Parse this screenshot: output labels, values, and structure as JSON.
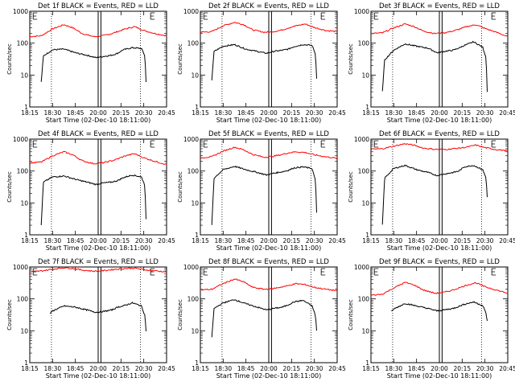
{
  "chart_data": {
    "type": "line",
    "x_ticks": [
      "18:15",
      "18:30",
      "18:45",
      "20:00",
      "20:15",
      "20:30",
      "20:45"
    ],
    "xlabel": "Start Time (02-Dec-10 18:11:00)",
    "ylabel": "Counts/sec",
    "y_ticks": [
      "1000",
      "100",
      "10",
      "1"
    ],
    "ylim": [
      1,
      1000
    ],
    "y_scale": "log",
    "grid": false,
    "series_colors": {
      "events": "#000000",
      "lld": "#ff0000"
    },
    "panels": [
      {
        "title": "Det 1f BLACK = Events, RED = LLD",
        "events": [
          [
            0.5,
            6
          ],
          [
            0.6,
            40
          ],
          [
            1.0,
            62
          ],
          [
            1.5,
            65
          ],
          [
            2.0,
            50
          ],
          [
            2.5,
            42
          ],
          [
            2.9,
            35
          ],
          [
            3.2,
            38
          ],
          [
            3.6,
            42
          ],
          [
            3.85,
            48
          ],
          [
            4.1,
            62
          ],
          [
            4.5,
            72
          ],
          [
            4.9,
            68
          ],
          [
            5.05,
            40
          ],
          [
            5.1,
            6
          ]
        ],
        "lld": [
          [
            0,
            160
          ],
          [
            0.5,
            170
          ],
          [
            1.0,
            280
          ],
          [
            1.5,
            380
          ],
          [
            1.9,
            300
          ],
          [
            2.3,
            200
          ],
          [
            2.8,
            160
          ],
          [
            3.2,
            170
          ],
          [
            3.6,
            200
          ],
          [
            3.85,
            230
          ],
          [
            4.2,
            280
          ],
          [
            4.6,
            330
          ],
          [
            5.0,
            250
          ],
          [
            5.5,
            200
          ],
          [
            6.0,
            170
          ]
        ]
      },
      {
        "title": "Det 2f BLACK = Events, RED = LLD",
        "events": [
          [
            0.5,
            7
          ],
          [
            0.6,
            55
          ],
          [
            1.0,
            80
          ],
          [
            1.5,
            90
          ],
          [
            2.0,
            65
          ],
          [
            2.5,
            55
          ],
          [
            2.9,
            48
          ],
          [
            3.2,
            55
          ],
          [
            3.6,
            60
          ],
          [
            3.85,
            65
          ],
          [
            4.1,
            78
          ],
          [
            4.5,
            90
          ],
          [
            4.9,
            85
          ],
          [
            5.05,
            45
          ],
          [
            5.1,
            8
          ]
        ],
        "lld": [
          [
            0,
            220
          ],
          [
            0.5,
            230
          ],
          [
            1.0,
            350
          ],
          [
            1.5,
            450
          ],
          [
            1.9,
            380
          ],
          [
            2.3,
            260
          ],
          [
            2.8,
            220
          ],
          [
            3.2,
            230
          ],
          [
            3.6,
            260
          ],
          [
            3.85,
            300
          ],
          [
            4.2,
            350
          ],
          [
            4.6,
            400
          ],
          [
            5.0,
            310
          ],
          [
            5.5,
            250
          ],
          [
            6.0,
            230
          ]
        ]
      },
      {
        "title": "Det 3f BLACK = Events, RED = LLD",
        "events": [
          [
            0.5,
            3
          ],
          [
            0.6,
            30
          ],
          [
            1.0,
            60
          ],
          [
            1.5,
            95
          ],
          [
            2.0,
            80
          ],
          [
            2.5,
            70
          ],
          [
            2.9,
            50
          ],
          [
            3.2,
            55
          ],
          [
            3.6,
            60
          ],
          [
            3.85,
            70
          ],
          [
            4.1,
            85
          ],
          [
            4.5,
            110
          ],
          [
            4.9,
            75
          ],
          [
            5.05,
            35
          ],
          [
            5.1,
            3
          ]
        ],
        "lld": [
          [
            0,
            200
          ],
          [
            0.5,
            210
          ],
          [
            1.0,
            300
          ],
          [
            1.5,
            400
          ],
          [
            1.9,
            330
          ],
          [
            2.3,
            240
          ],
          [
            2.8,
            200
          ],
          [
            3.2,
            210
          ],
          [
            3.6,
            240
          ],
          [
            3.85,
            270
          ],
          [
            4.2,
            330
          ],
          [
            4.6,
            380
          ],
          [
            5.0,
            290
          ],
          [
            5.5,
            220
          ],
          [
            6.0,
            160
          ]
        ]
      },
      {
        "title": "Det 4f BLACK = Events, RED = LLD",
        "events": [
          [
            0.5,
            2
          ],
          [
            0.6,
            45
          ],
          [
            1.0,
            65
          ],
          [
            1.5,
            70
          ],
          [
            2.0,
            55
          ],
          [
            2.5,
            45
          ],
          [
            2.9,
            38
          ],
          [
            3.2,
            42
          ],
          [
            3.6,
            45
          ],
          [
            3.85,
            50
          ],
          [
            4.1,
            62
          ],
          [
            4.5,
            75
          ],
          [
            4.9,
            65
          ],
          [
            5.05,
            35
          ],
          [
            5.1,
            3
          ]
        ],
        "lld": [
          [
            0,
            180
          ],
          [
            0.5,
            190
          ],
          [
            1.0,
            300
          ],
          [
            1.5,
            400
          ],
          [
            1.9,
            320
          ],
          [
            2.3,
            210
          ],
          [
            2.8,
            170
          ],
          [
            3.2,
            180
          ],
          [
            3.6,
            210
          ],
          [
            3.85,
            240
          ],
          [
            4.2,
            300
          ],
          [
            4.6,
            350
          ],
          [
            5.0,
            260
          ],
          [
            5.5,
            200
          ],
          [
            6.0,
            160
          ]
        ]
      },
      {
        "title": "Det 5f BLACK = Events, RED = LLD",
        "events": [
          [
            0.5,
            2
          ],
          [
            0.6,
            60
          ],
          [
            1.0,
            110
          ],
          [
            1.5,
            140
          ],
          [
            2.0,
            110
          ],
          [
            2.5,
            90
          ],
          [
            2.9,
            75
          ],
          [
            3.2,
            85
          ],
          [
            3.6,
            95
          ],
          [
            3.85,
            105
          ],
          [
            4.1,
            125
          ],
          [
            4.5,
            135
          ],
          [
            4.9,
            120
          ],
          [
            5.05,
            50
          ],
          [
            5.1,
            5
          ]
        ],
        "lld": [
          [
            0,
            260
          ],
          [
            0.5,
            280
          ],
          [
            1.0,
            420
          ],
          [
            1.5,
            560
          ],
          [
            1.9,
            460
          ],
          [
            2.3,
            330
          ],
          [
            2.8,
            270
          ],
          [
            3.2,
            290
          ],
          [
            3.6,
            330
          ],
          [
            3.85,
            370
          ],
          [
            4.2,
            400
          ],
          [
            4.6,
            380
          ],
          [
            5.0,
            320
          ],
          [
            5.5,
            280
          ],
          [
            6.0,
            250
          ]
        ]
      },
      {
        "title": "Det 6f BLACK = Events, RED = LLD",
        "events": [
          [
            0.5,
            2
          ],
          [
            0.6,
            60
          ],
          [
            1.0,
            120
          ],
          [
            1.5,
            150
          ],
          [
            2.0,
            110
          ],
          [
            2.5,
            90
          ],
          [
            2.9,
            72
          ],
          [
            3.2,
            80
          ],
          [
            3.6,
            90
          ],
          [
            3.85,
            100
          ],
          [
            4.1,
            135
          ],
          [
            4.5,
            150
          ],
          [
            4.9,
            110
          ],
          [
            5.05,
            60
          ],
          [
            5.1,
            15
          ]
        ],
        "lld": [
          [
            0,
            480
          ],
          [
            0.5,
            500
          ],
          [
            1.0,
            600
          ],
          [
            1.5,
            720
          ],
          [
            1.9,
            640
          ],
          [
            2.3,
            520
          ],
          [
            2.8,
            480
          ],
          [
            3.2,
            470
          ],
          [
            3.6,
            500
          ],
          [
            3.85,
            520
          ],
          [
            4.2,
            560
          ],
          [
            4.6,
            650
          ],
          [
            5.0,
            540
          ],
          [
            5.5,
            470
          ],
          [
            6.0,
            430
          ]
        ]
      },
      {
        "title": "Det 7f BLACK = Events, RED = LLD",
        "events": [
          [
            0.9,
            35
          ],
          [
            1.0,
            42
          ],
          [
            1.5,
            60
          ],
          [
            2.0,
            55
          ],
          [
            2.5,
            45
          ],
          [
            2.9,
            38
          ],
          [
            3.2,
            40
          ],
          [
            3.6,
            45
          ],
          [
            3.85,
            55
          ],
          [
            4.1,
            60
          ],
          [
            4.5,
            75
          ],
          [
            4.9,
            60
          ],
          [
            5.05,
            30
          ],
          [
            5.1,
            10
          ]
        ],
        "lld": [
          [
            0,
            700
          ],
          [
            0.5,
            750
          ],
          [
            1.0,
            850
          ],
          [
            1.5,
            950
          ],
          [
            1.9,
            900
          ],
          [
            2.3,
            800
          ],
          [
            2.8,
            740
          ],
          [
            3.2,
            760
          ],
          [
            3.6,
            820
          ],
          [
            3.85,
            860
          ],
          [
            4.2,
            900
          ],
          [
            4.6,
            920
          ],
          [
            5.0,
            820
          ],
          [
            5.5,
            760
          ],
          [
            6.0,
            700
          ]
        ]
      },
      {
        "title": "Det 8f BLACK = Events, RED = LLD",
        "events": [
          [
            0.5,
            6
          ],
          [
            0.6,
            50
          ],
          [
            1.0,
            75
          ],
          [
            1.5,
            95
          ],
          [
            2.0,
            70
          ],
          [
            2.5,
            55
          ],
          [
            2.9,
            45
          ],
          [
            3.2,
            50
          ],
          [
            3.6,
            55
          ],
          [
            3.85,
            65
          ],
          [
            4.1,
            80
          ],
          [
            4.5,
            90
          ],
          [
            4.9,
            60
          ],
          [
            5.05,
            30
          ],
          [
            5.1,
            10
          ]
        ],
        "lld": [
          [
            0,
            190
          ],
          [
            0.5,
            200
          ],
          [
            1.0,
            300
          ],
          [
            1.5,
            420
          ],
          [
            1.9,
            340
          ],
          [
            2.3,
            230
          ],
          [
            2.8,
            200
          ],
          [
            3.2,
            210
          ],
          [
            3.6,
            240
          ],
          [
            3.85,
            260
          ],
          [
            4.2,
            300
          ],
          [
            4.6,
            280
          ],
          [
            5.0,
            230
          ],
          [
            5.5,
            200
          ],
          [
            6.0,
            180
          ]
        ]
      },
      {
        "title": "Det 9f BLACK = Events, RED = LLD",
        "events": [
          [
            0.9,
            40
          ],
          [
            1.0,
            48
          ],
          [
            1.5,
            72
          ],
          [
            2.0,
            60
          ],
          [
            2.5,
            50
          ],
          [
            2.9,
            42
          ],
          [
            3.2,
            45
          ],
          [
            3.6,
            50
          ],
          [
            3.85,
            58
          ],
          [
            4.1,
            68
          ],
          [
            4.5,
            80
          ],
          [
            4.9,
            62
          ],
          [
            5.05,
            35
          ],
          [
            5.1,
            20
          ]
        ],
        "lld": [
          [
            0,
            130
          ],
          [
            0.5,
            140
          ],
          [
            1.0,
            220
          ],
          [
            1.5,
            330
          ],
          [
            1.9,
            270
          ],
          [
            2.3,
            190
          ],
          [
            2.8,
            150
          ],
          [
            3.2,
            160
          ],
          [
            3.6,
            190
          ],
          [
            3.85,
            220
          ],
          [
            4.2,
            270
          ],
          [
            4.6,
            320
          ],
          [
            5.0,
            240
          ],
          [
            5.5,
            190
          ],
          [
            6.0,
            150
          ]
        ]
      }
    ]
  }
}
